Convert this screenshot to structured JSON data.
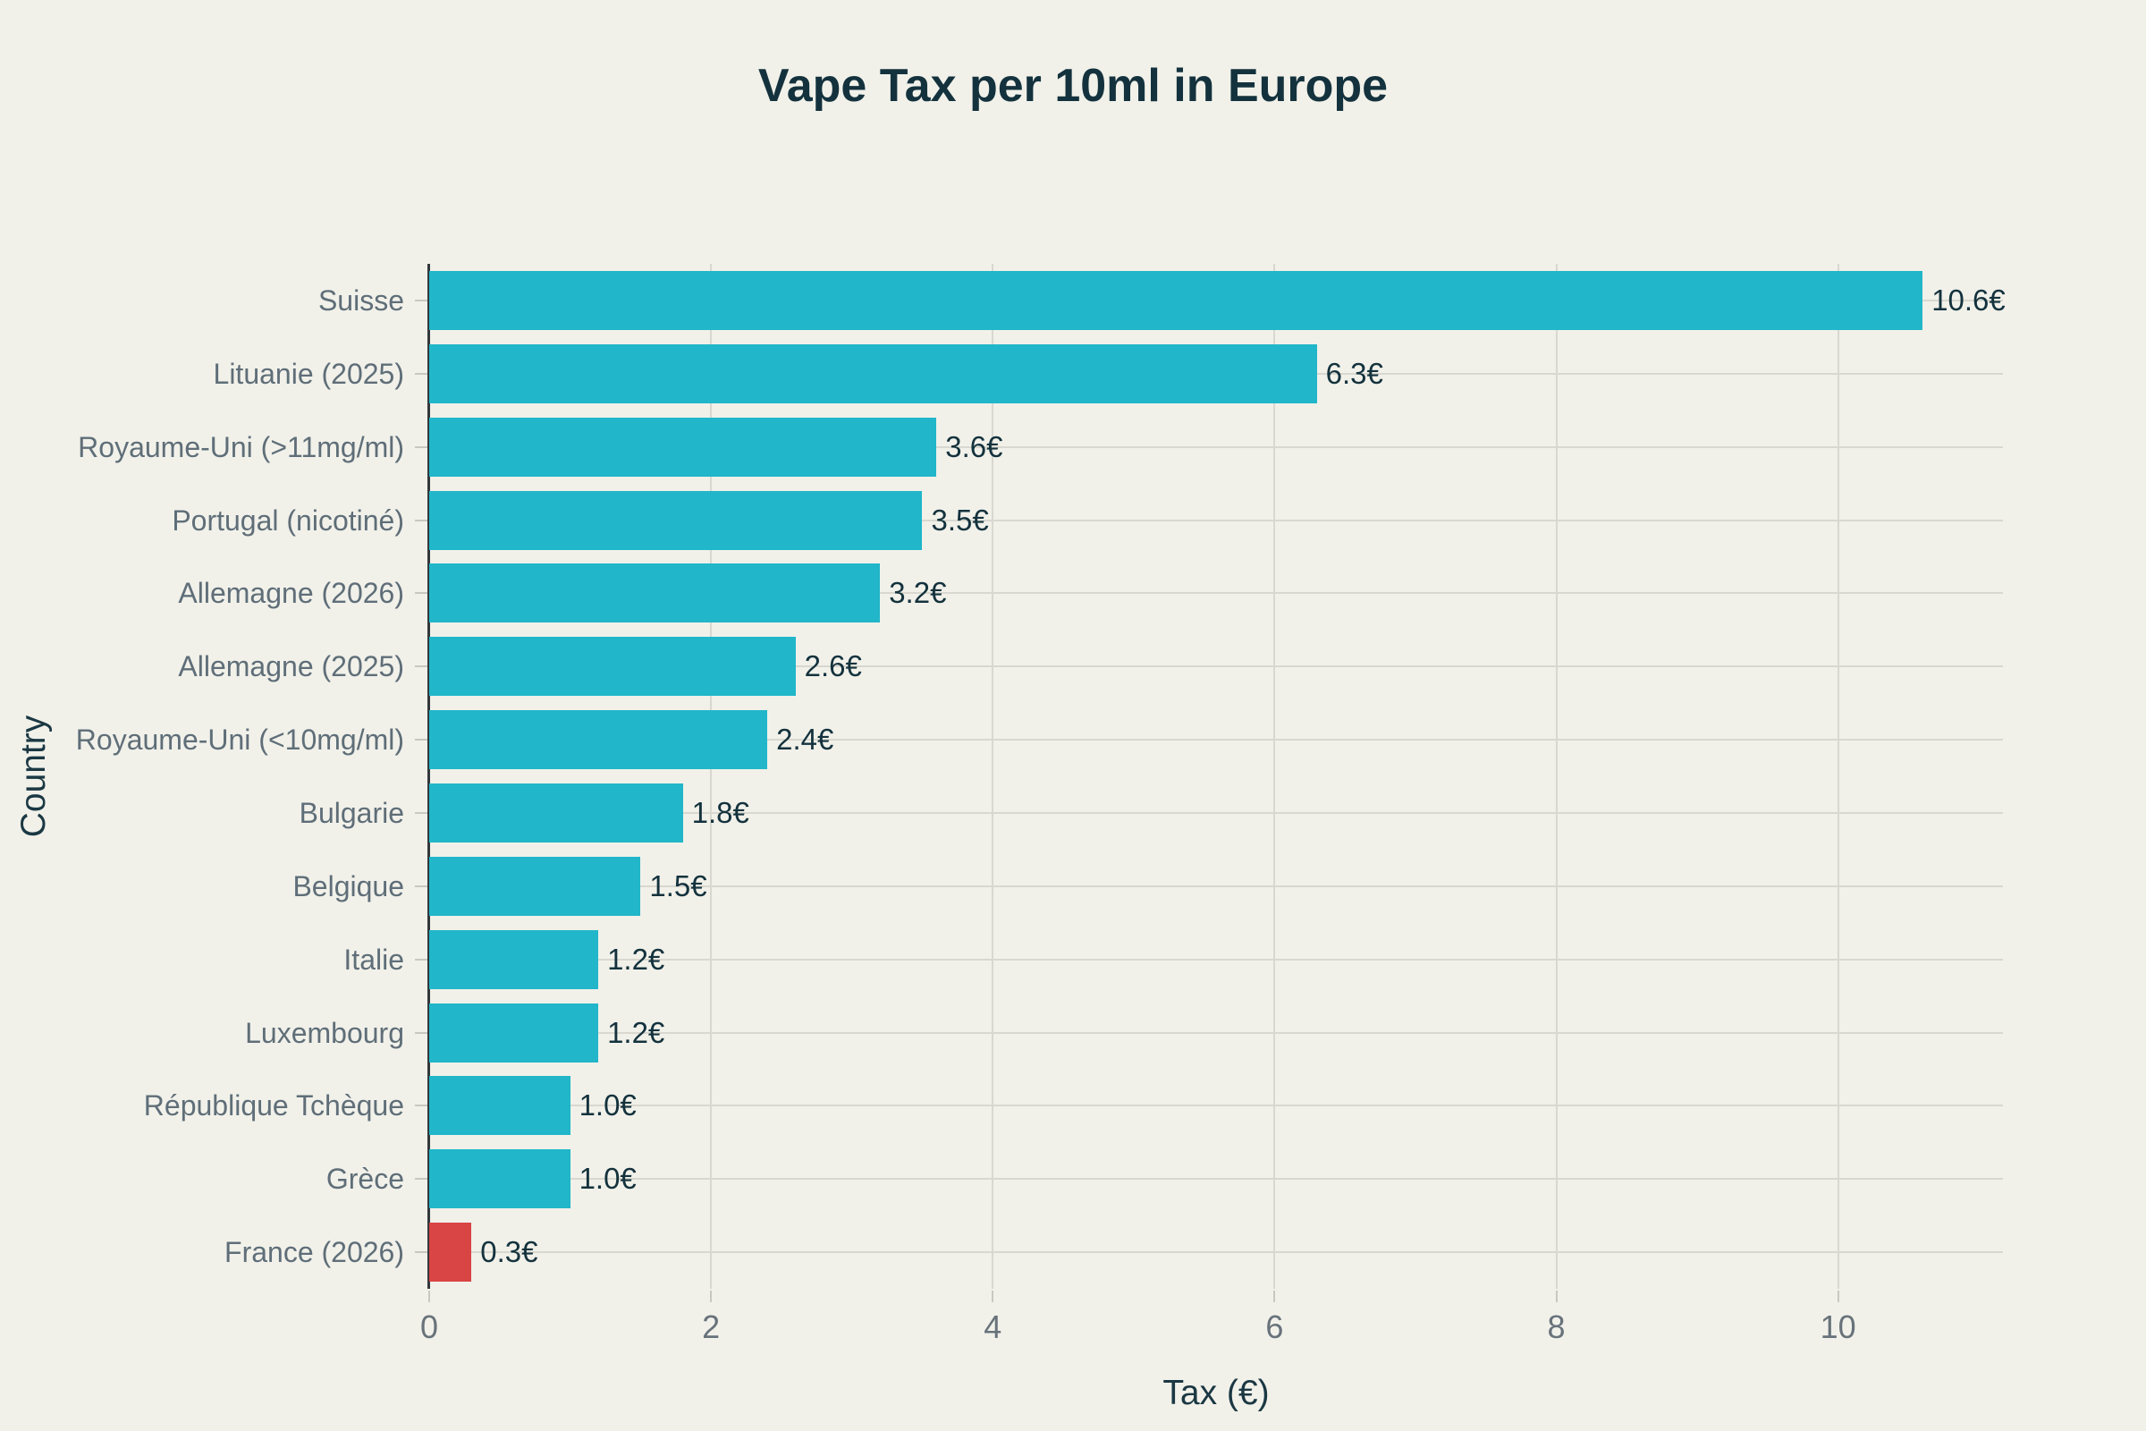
{
  "chart_data": {
    "type": "bar",
    "orientation": "horizontal",
    "title": "Vape Tax per 10ml in Europe",
    "xlabel": "Tax (€)",
    "ylabel": "Country",
    "categories": [
      "Suisse",
      "Lituanie (2025)",
      "Royaume-Uni (>11mg/ml)",
      "Portugal (nicotiné)",
      "Allemagne (2026)",
      "Allemagne (2025)",
      "Royaume-Uni (<10mg/ml)",
      "Bulgarie",
      "Belgique",
      "Italie",
      "Luxembourg",
      "République Tchèque",
      "Grèce",
      "France (2026)"
    ],
    "values": [
      10.6,
      6.3,
      3.6,
      3.5,
      3.2,
      2.6,
      2.4,
      1.8,
      1.5,
      1.2,
      1.2,
      1.0,
      1.0,
      0.3
    ],
    "value_labels": [
      "10.6€",
      "6.3€",
      "3.6€",
      "3.5€",
      "3.2€",
      "2.6€",
      "2.4€",
      "1.8€",
      "1.5€",
      "1.2€",
      "1.2€",
      "1.0€",
      "1.0€",
      "0.3€"
    ],
    "bar_colors": [
      "#21b6c9",
      "#21b6c9",
      "#21b6c9",
      "#21b6c9",
      "#21b6c9",
      "#21b6c9",
      "#21b6c9",
      "#21b6c9",
      "#21b6c9",
      "#21b6c9",
      "#21b6c9",
      "#21b6c9",
      "#21b6c9",
      "#d94444"
    ],
    "highlight": {
      "category": "France (2026)",
      "color": "#d94444"
    },
    "xticks": [
      0,
      2,
      4,
      6,
      8,
      10
    ],
    "xtick_labels": [
      "0",
      "2",
      "4",
      "6",
      "8",
      "10"
    ],
    "xlim": [
      0,
      11.17
    ],
    "grid": true,
    "legend": "none",
    "colors": {
      "background": "#f1f1ea",
      "bar_teal": "#21b6c9",
      "bar_red": "#d94444",
      "gridline": "#d8d8d0",
      "axis_line": "#33383b",
      "tick_mark": "#c8c8c2",
      "title_text": "#14323d",
      "value_label_text": "#14323d",
      "axis_title_text": "#1b3843",
      "category_label_text": "#5f6e78",
      "tick_label_text": "#68727a"
    }
  }
}
